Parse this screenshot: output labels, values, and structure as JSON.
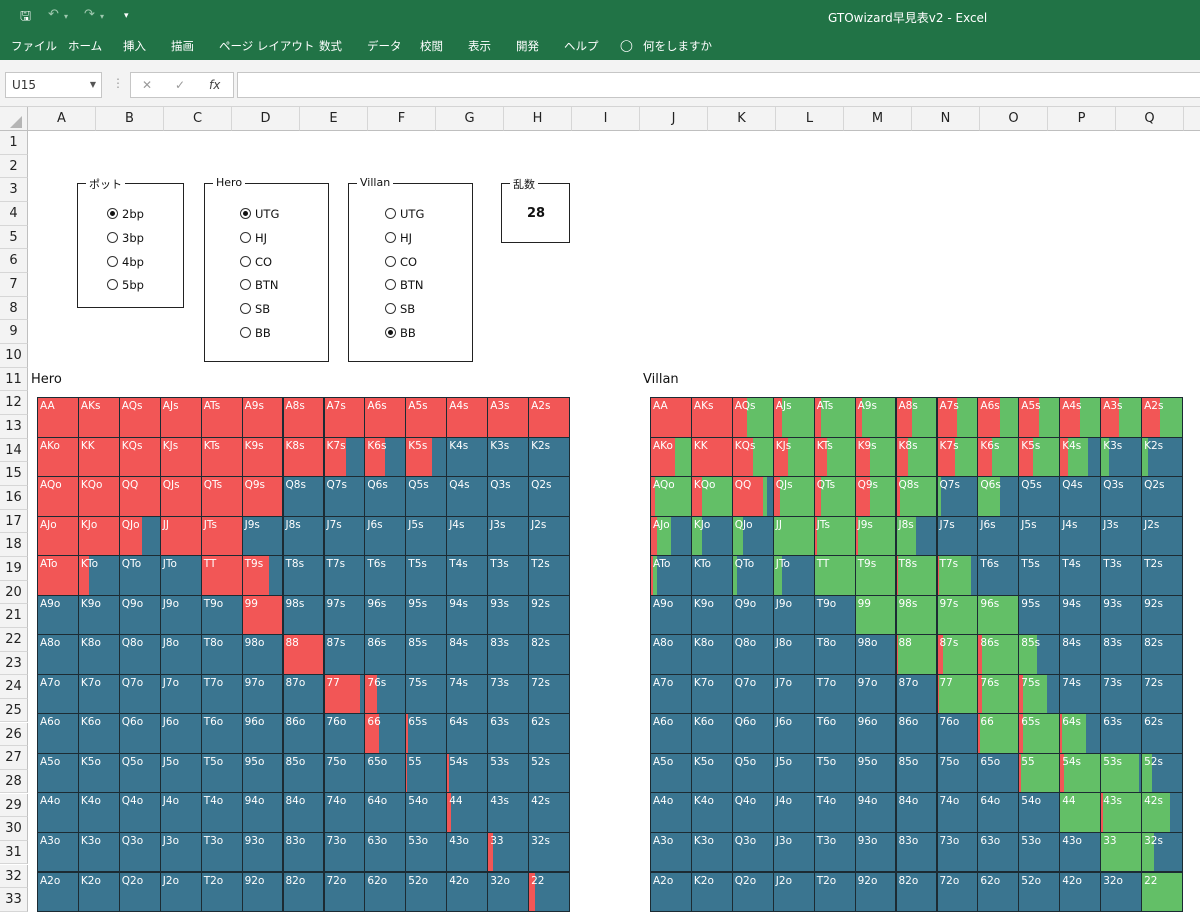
{
  "colors": {
    "ribbon": "#217346",
    "raise": "#f25656",
    "call": "#63bf67",
    "fold": "#3a7590"
  },
  "app": {
    "title": "GTOwizard早見表v2  -  Excel",
    "menu": [
      "ファイル",
      "ホーム",
      "挿入",
      "描画",
      "ページ レイアウト",
      "数式",
      "データ",
      "校閲",
      "表示",
      "開発",
      "ヘルプ",
      "何をしますか"
    ]
  },
  "formula_bar": {
    "name_box": "U15",
    "cancel_glyph": "✕",
    "enter_glyph": "✓",
    "fx_glyph": "fx"
  },
  "sheet": {
    "columns": [
      "A",
      "B",
      "C",
      "D",
      "E",
      "F",
      "G",
      "H",
      "I",
      "J",
      "K",
      "L",
      "M",
      "N",
      "O",
      "P",
      "Q"
    ],
    "rows": [
      "1",
      "2",
      "3",
      "4",
      "5",
      "6",
      "7",
      "8",
      "9",
      "10",
      "11",
      "12",
      "13",
      "14",
      "15",
      "16",
      "17",
      "18",
      "19",
      "20",
      "21",
      "22",
      "23",
      "24",
      "25",
      "26",
      "27",
      "28",
      "29",
      "30",
      "31",
      "32",
      "33"
    ]
  },
  "controls": {
    "pot": {
      "title": "ポット",
      "options": [
        "2bp",
        "3bp",
        "4bp",
        "5bp"
      ],
      "selected": "2bp"
    },
    "hero": {
      "title": "Hero",
      "options": [
        "UTG",
        "HJ",
        "CO",
        "BTN",
        "SB",
        "BB"
      ],
      "selected": "UTG"
    },
    "villan": {
      "title": "Villan",
      "options": [
        "UTG",
        "HJ",
        "CO",
        "BTN",
        "SB",
        "BB"
      ],
      "selected": "BB"
    },
    "random": {
      "title": "乱数",
      "value": "28"
    }
  },
  "ranks": [
    "A",
    "K",
    "Q",
    "J",
    "T",
    "9",
    "8",
    "7",
    "6",
    "5",
    "4",
    "3",
    "2"
  ],
  "hero_label": "Hero",
  "villan_label": "Villan",
  "hero_grid": [
    [
      [
        1,
        0
      ],
      [
        1,
        0
      ],
      [
        1,
        0
      ],
      [
        1,
        0
      ],
      [
        1,
        0
      ],
      [
        1,
        0
      ],
      [
        1,
        0
      ],
      [
        1,
        0
      ],
      [
        1,
        0
      ],
      [
        1,
        0
      ],
      [
        1,
        0
      ],
      [
        1,
        0
      ],
      [
        1,
        0
      ]
    ],
    [
      [
        1,
        0
      ],
      [
        1,
        0
      ],
      [
        1,
        0
      ],
      [
        1,
        0
      ],
      [
        1,
        0
      ],
      [
        1,
        0
      ],
      [
        1,
        0
      ],
      [
        0.55,
        0
      ],
      [
        0.5,
        0
      ],
      [
        0.65,
        0
      ],
      [
        0,
        0
      ],
      [
        0,
        0
      ],
      [
        0,
        0
      ]
    ],
    [
      [
        1,
        0
      ],
      [
        1,
        0
      ],
      [
        1,
        0
      ],
      [
        1,
        0
      ],
      [
        1,
        0
      ],
      [
        1,
        0
      ],
      [
        0,
        0
      ],
      [
        0,
        0
      ],
      [
        0,
        0
      ],
      [
        0,
        0
      ],
      [
        0,
        0
      ],
      [
        0,
        0
      ],
      [
        0,
        0
      ]
    ],
    [
      [
        1,
        0
      ],
      [
        1,
        0
      ],
      [
        0.55,
        0
      ],
      [
        1,
        0
      ],
      [
        1,
        0
      ],
      [
        0,
        0
      ],
      [
        0,
        0
      ],
      [
        0,
        0
      ],
      [
        0,
        0
      ],
      [
        0,
        0
      ],
      [
        0,
        0
      ],
      [
        0,
        0
      ],
      [
        0,
        0
      ]
    ],
    [
      [
        1,
        0
      ],
      [
        0.25,
        0
      ],
      [
        0,
        0
      ],
      [
        0,
        0
      ],
      [
        1,
        0
      ],
      [
        0.65,
        0
      ],
      [
        0,
        0
      ],
      [
        0,
        0
      ],
      [
        0,
        0
      ],
      [
        0,
        0
      ],
      [
        0,
        0
      ],
      [
        0,
        0
      ],
      [
        0,
        0
      ]
    ],
    [
      [
        0,
        0
      ],
      [
        0,
        0
      ],
      [
        0,
        0
      ],
      [
        0,
        0
      ],
      [
        0,
        0
      ],
      [
        1,
        0
      ],
      [
        0,
        0
      ],
      [
        0,
        0
      ],
      [
        0,
        0
      ],
      [
        0,
        0
      ],
      [
        0,
        0
      ],
      [
        0,
        0
      ],
      [
        0,
        0
      ]
    ],
    [
      [
        0,
        0
      ],
      [
        0,
        0
      ],
      [
        0,
        0
      ],
      [
        0,
        0
      ],
      [
        0,
        0
      ],
      [
        0,
        0
      ],
      [
        1,
        0
      ],
      [
        0,
        0
      ],
      [
        0,
        0
      ],
      [
        0,
        0
      ],
      [
        0,
        0
      ],
      [
        0,
        0
      ],
      [
        0,
        0
      ]
    ],
    [
      [
        0,
        0
      ],
      [
        0,
        0
      ],
      [
        0,
        0
      ],
      [
        0,
        0
      ],
      [
        0,
        0
      ],
      [
        0,
        0
      ],
      [
        0,
        0
      ],
      [
        0.9,
        0
      ],
      [
        0.3,
        0
      ],
      [
        0,
        0
      ],
      [
        0,
        0
      ],
      [
        0,
        0
      ],
      [
        0,
        0
      ]
    ],
    [
      [
        0,
        0
      ],
      [
        0,
        0
      ],
      [
        0,
        0
      ],
      [
        0,
        0
      ],
      [
        0,
        0
      ],
      [
        0,
        0
      ],
      [
        0,
        0
      ],
      [
        0,
        0
      ],
      [
        0.35,
        0
      ],
      [
        0.05,
        0
      ],
      [
        0,
        0
      ],
      [
        0,
        0
      ],
      [
        0,
        0
      ]
    ],
    [
      [
        0,
        0
      ],
      [
        0,
        0
      ],
      [
        0,
        0
      ],
      [
        0,
        0
      ],
      [
        0,
        0
      ],
      [
        0,
        0
      ],
      [
        0,
        0
      ],
      [
        0,
        0
      ],
      [
        0,
        0
      ],
      [
        0.02,
        0
      ],
      [
        0.05,
        0
      ],
      [
        0,
        0
      ],
      [
        0,
        0
      ]
    ],
    [
      [
        0,
        0
      ],
      [
        0,
        0
      ],
      [
        0,
        0
      ],
      [
        0,
        0
      ],
      [
        0,
        0
      ],
      [
        0,
        0
      ],
      [
        0,
        0
      ],
      [
        0,
        0
      ],
      [
        0,
        0
      ],
      [
        0,
        0
      ],
      [
        0.1,
        0
      ],
      [
        0,
        0
      ],
      [
        0,
        0
      ]
    ],
    [
      [
        0,
        0
      ],
      [
        0,
        0
      ],
      [
        0,
        0
      ],
      [
        0,
        0
      ],
      [
        0,
        0
      ],
      [
        0,
        0
      ],
      [
        0,
        0
      ],
      [
        0,
        0
      ],
      [
        0,
        0
      ],
      [
        0,
        0
      ],
      [
        0,
        0
      ],
      [
        0.12,
        0
      ],
      [
        0,
        0
      ]
    ],
    [
      [
        0,
        0
      ],
      [
        0,
        0
      ],
      [
        0,
        0
      ],
      [
        0,
        0
      ],
      [
        0,
        0
      ],
      [
        0,
        0
      ],
      [
        0,
        0
      ],
      [
        0,
        0
      ],
      [
        0,
        0
      ],
      [
        0,
        0
      ],
      [
        0,
        0
      ],
      [
        0,
        0
      ],
      [
        0.15,
        0
      ]
    ]
  ],
  "villan_grid": [
    [
      [
        1,
        0
      ],
      [
        1,
        0
      ],
      [
        0.35,
        0.65
      ],
      [
        0.2,
        0.8
      ],
      [
        0.15,
        0.85
      ],
      [
        0.15,
        0.85
      ],
      [
        0.4,
        0.6
      ],
      [
        0.5,
        0.5
      ],
      [
        0.55,
        0.45
      ],
      [
        0.5,
        0.5
      ],
      [
        0.5,
        0.5
      ],
      [
        0.45,
        0.55
      ],
      [
        0.45,
        0.55
      ]
    ],
    [
      [
        0.6,
        0.4
      ],
      [
        1,
        0
      ],
      [
        0.5,
        0.5
      ],
      [
        0.35,
        0.65
      ],
      [
        0.3,
        0.7
      ],
      [
        0.35,
        0.65
      ],
      [
        0.3,
        0.7
      ],
      [
        0.45,
        0.55
      ],
      [
        0.35,
        0.65
      ],
      [
        0.35,
        0.65
      ],
      [
        0.2,
        0.5
      ],
      [
        0,
        0.2
      ],
      [
        0,
        0.15
      ]
    ],
    [
      [
        0.1,
        0.9
      ],
      [
        0.25,
        0.75
      ],
      [
        0.75,
        0.1
      ],
      [
        0.15,
        0.85
      ],
      [
        0.15,
        0.85
      ],
      [
        0.35,
        0.65
      ],
      [
        0.1,
        0.9
      ],
      [
        0,
        0.1
      ],
      [
        0,
        0.55
      ],
      [
        0,
        0
      ],
      [
        0,
        0
      ],
      [
        0,
        0
      ],
      [
        0,
        0
      ]
    ],
    [
      [
        0.15,
        0.35
      ],
      [
        0,
        0.25
      ],
      [
        0,
        0.25
      ],
      [
        0,
        1
      ],
      [
        0.05,
        0.95
      ],
      [
        0.05,
        0.95
      ],
      [
        0,
        0.5
      ],
      [
        0,
        0
      ],
      [
        0,
        0
      ],
      [
        0,
        0
      ],
      [
        0,
        0
      ],
      [
        0,
        0
      ],
      [
        0,
        0
      ]
    ],
    [
      [
        0.05,
        0.1
      ],
      [
        0,
        0
      ],
      [
        0,
        0.1
      ],
      [
        0,
        0.2
      ],
      [
        0,
        1
      ],
      [
        0,
        1
      ],
      [
        0.05,
        0.95
      ],
      [
        0.05,
        0.8
      ],
      [
        0,
        0
      ],
      [
        0,
        0
      ],
      [
        0,
        0
      ],
      [
        0,
        0
      ],
      [
        0,
        0
      ]
    ],
    [
      [
        0,
        0
      ],
      [
        0,
        0
      ],
      [
        0,
        0
      ],
      [
        0,
        0
      ],
      [
        0,
        0
      ],
      [
        0,
        1
      ],
      [
        0,
        1
      ],
      [
        0,
        1
      ],
      [
        0,
        1
      ],
      [
        0,
        0
      ],
      [
        0,
        0
      ],
      [
        0,
        0
      ],
      [
        0,
        0
      ]
    ],
    [
      [
        0,
        0
      ],
      [
        0,
        0
      ],
      [
        0,
        0
      ],
      [
        0,
        0
      ],
      [
        0,
        0
      ],
      [
        0,
        0
      ],
      [
        0.05,
        0.95
      ],
      [
        0.15,
        0.85
      ],
      [
        0.1,
        0.9
      ],
      [
        0,
        0.45
      ],
      [
        0,
        0
      ],
      [
        0,
        0
      ],
      [
        0,
        0
      ]
    ],
    [
      [
        0,
        0
      ],
      [
        0,
        0
      ],
      [
        0,
        0
      ],
      [
        0,
        0
      ],
      [
        0,
        0
      ],
      [
        0,
        0
      ],
      [
        0,
        0
      ],
      [
        0.05,
        0.95
      ],
      [
        0.1,
        0.9
      ],
      [
        0.1,
        0.6
      ],
      [
        0,
        0
      ],
      [
        0,
        0
      ],
      [
        0,
        0
      ]
    ],
    [
      [
        0,
        0
      ],
      [
        0,
        0
      ],
      [
        0,
        0
      ],
      [
        0,
        0
      ],
      [
        0,
        0
      ],
      [
        0,
        0
      ],
      [
        0,
        0
      ],
      [
        0,
        0
      ],
      [
        0.05,
        0.95
      ],
      [
        0.1,
        0.9
      ],
      [
        0.05,
        0.6
      ],
      [
        0,
        0
      ],
      [
        0,
        0
      ]
    ],
    [
      [
        0,
        0
      ],
      [
        0,
        0
      ],
      [
        0,
        0
      ],
      [
        0,
        0
      ],
      [
        0,
        0
      ],
      [
        0,
        0
      ],
      [
        0,
        0
      ],
      [
        0,
        0
      ],
      [
        0,
        0
      ],
      [
        0.05,
        0.95
      ],
      [
        0.1,
        0.9
      ],
      [
        0,
        0.95
      ],
      [
        0,
        0.25
      ]
    ],
    [
      [
        0,
        0
      ],
      [
        0,
        0
      ],
      [
        0,
        0
      ],
      [
        0,
        0
      ],
      [
        0,
        0
      ],
      [
        0,
        0
      ],
      [
        0,
        0
      ],
      [
        0,
        0
      ],
      [
        0,
        0
      ],
      [
        0,
        0
      ],
      [
        0,
        1
      ],
      [
        0.05,
        0.95
      ],
      [
        0,
        0.7
      ]
    ],
    [
      [
        0,
        0
      ],
      [
        0,
        0
      ],
      [
        0,
        0
      ],
      [
        0,
        0
      ],
      [
        0,
        0
      ],
      [
        0,
        0
      ],
      [
        0,
        0
      ],
      [
        0,
        0
      ],
      [
        0,
        0
      ],
      [
        0,
        0
      ],
      [
        0,
        0
      ],
      [
        0,
        1
      ],
      [
        0,
        0.3
      ]
    ],
    [
      [
        0,
        0
      ],
      [
        0,
        0
      ],
      [
        0,
        0
      ],
      [
        0,
        0
      ],
      [
        0,
        0
      ],
      [
        0,
        0
      ],
      [
        0,
        0
      ],
      [
        0,
        0
      ],
      [
        0,
        0
      ],
      [
        0,
        0
      ],
      [
        0,
        0
      ],
      [
        0,
        0
      ],
      [
        0,
        1
      ]
    ]
  ]
}
